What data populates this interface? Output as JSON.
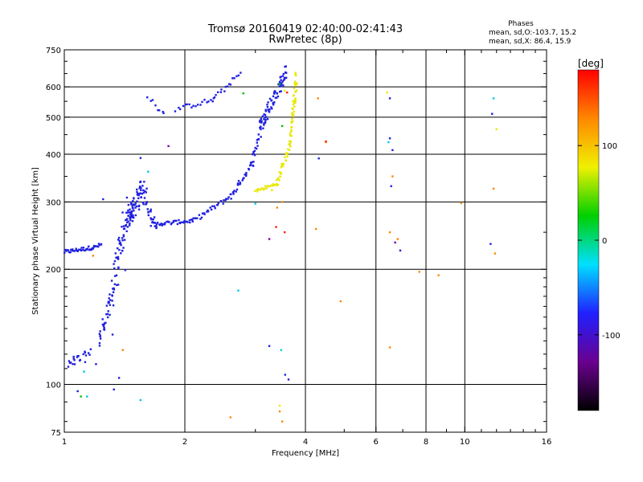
{
  "chart_data": {
    "type": "scatter",
    "title": "Tromsø 20160419 02:40:00-02:41:43",
    "subtitle": "RwPretec (8p)",
    "phases": {
      "title": "Phases",
      "line_o": "mean, sd,O:-103.7, 15.2",
      "line_x": "mean, sd,X:  86.4, 15.9"
    },
    "xlabel": "Frequency [MHz]",
    "ylabel": "Stationary phase Virtual Height [km]",
    "x_scale": "log",
    "y_scale": "log",
    "xlim": [
      1,
      16
    ],
    "ylim": [
      75,
      750
    ],
    "xticks": [
      1,
      2,
      4,
      6,
      8,
      10,
      16
    ],
    "xtick_labels": [
      "1",
      "2",
      "4",
      "6",
      "8",
      "10",
      "16"
    ],
    "x_gridlines": [
      2,
      4,
      6,
      8,
      10
    ],
    "yticks": [
      75,
      100,
      200,
      300,
      400,
      500,
      600,
      750
    ],
    "ytick_labels": [
      "75",
      "100",
      "200",
      "300",
      "400",
      "500",
      "600",
      "750"
    ],
    "y_gridlines": [
      100,
      200,
      300,
      400,
      500,
      600
    ],
    "grid": true,
    "colorbar": {
      "label": "[deg]",
      "min": -180,
      "max": 180,
      "ticks": [
        100,
        0,
        -100
      ],
      "tick_labels": [
        "100",
        "0",
        "-100"
      ],
      "colors": [
        "#000000",
        "#6a0090",
        "#2020ff",
        "#00e0ff",
        "#00d000",
        "#f0f000",
        "#ff8800",
        "#ff0000"
      ]
    },
    "series": [
      {
        "color": "#2020e0",
        "segments": [
          {
            "from": [
              1.0,
              222
            ],
            "to": [
              1.18,
              228
            ],
            "n": 34,
            "jitter": 0.012
          },
          {
            "from": [
              1.18,
              228
            ],
            "to": [
              1.24,
              232
            ],
            "n": 10,
            "jitter": 0.012
          },
          {
            "from": [
              1.02,
              112
            ],
            "to": [
              1.16,
              120
            ],
            "n": 22,
            "jitter": 0.035
          },
          {
            "from": [
              1.22,
              130
            ],
            "to": [
              1.3,
              160
            ],
            "n": 24,
            "jitter": 0.04
          },
          {
            "from": [
              1.3,
              160
            ],
            "to": [
              1.38,
              230
            ],
            "n": 36,
            "jitter": 0.06
          },
          {
            "from": [
              1.38,
              230
            ],
            "to": [
              1.46,
              290
            ],
            "n": 34,
            "jitter": 0.07
          },
          {
            "from": [
              1.44,
              270
            ],
            "to": [
              1.58,
              330
            ],
            "n": 70,
            "jitter": 0.06
          },
          {
            "from": [
              1.58,
              300
            ],
            "to": [
              1.7,
              262
            ],
            "n": 22,
            "jitter": 0.03
          },
          {
            "from": [
              1.65,
              262
            ],
            "to": [
              2.1,
              268
            ],
            "n": 40,
            "jitter": 0.012
          },
          {
            "from": [
              2.1,
              268
            ],
            "to": [
              2.6,
              310
            ],
            "n": 30,
            "jitter": 0.015
          },
          {
            "from": [
              2.6,
              310
            ],
            "to": [
              2.95,
              380
            ],
            "n": 28,
            "jitter": 0.02
          },
          {
            "from": [
              2.95,
              380
            ],
            "to": [
              3.15,
              500
            ],
            "n": 26,
            "jitter": 0.03
          },
          {
            "from": [
              3.1,
              480
            ],
            "to": [
              3.6,
              660
            ],
            "n": 70,
            "jitter": 0.04
          },
          {
            "from": [
              1.9,
              525
            ],
            "to": [
              2.35,
              555
            ],
            "n": 18,
            "jitter": 0.015
          },
          {
            "from": [
              2.35,
              555
            ],
            "to": [
              2.75,
              650
            ],
            "n": 16,
            "jitter": 0.015
          },
          {
            "from": [
              1.62,
              560
            ],
            "to": [
              1.78,
              510
            ],
            "n": 8,
            "jitter": 0.02
          }
        ],
        "points": [
          [
            1.08,
            96
          ],
          [
            1.33,
            97
          ],
          [
            1.37,
            104
          ],
          [
            1.42,
            199
          ],
          [
            1.2,
            113
          ],
          [
            1.32,
            135
          ],
          [
            1.55,
            391
          ],
          [
            1.25,
            305
          ],
          [
            3.25,
            126
          ],
          [
            6.5,
            560
          ],
          [
            6.5,
            440
          ],
          [
            6.6,
            410
          ],
          [
            6.55,
            330
          ],
          [
            11.7,
            510
          ],
          [
            11.6,
            233
          ],
          [
            6.9,
            224
          ],
          [
            4.32,
            390
          ],
          [
            3.56,
            106
          ],
          [
            3.63,
            103
          ]
        ]
      },
      {
        "color": "#e8e800",
        "segments": [
          {
            "from": [
              3.0,
              320
            ],
            "to": [
              3.4,
              335
            ],
            "n": 22,
            "jitter": 0.01
          },
          {
            "from": [
              3.4,
              335
            ],
            "to": [
              3.65,
              420
            ],
            "n": 30,
            "jitter": 0.02
          },
          {
            "from": [
              3.65,
              420
            ],
            "to": [
              3.8,
              650
            ],
            "n": 40,
            "jitter": 0.02
          },
          {
            "from": [
              3.7,
              500
            ],
            "to": [
              3.82,
              600
            ],
            "n": 8,
            "jitter": 0.02
          }
        ],
        "points": [
          [
            3.55,
            586
          ],
          [
            3.45,
            88
          ],
          [
            3.3,
            322
          ],
          [
            12.0,
            465
          ],
          [
            6.4,
            580
          ]
        ]
      },
      {
        "color": "#00c8e8",
        "points": [
          [
            1.14,
            93
          ],
          [
            1.55,
            91
          ],
          [
            1.62,
            360
          ],
          [
            2.72,
            176
          ],
          [
            3.48,
            123
          ],
          [
            6.45,
            430
          ],
          [
            11.8,
            560
          ],
          [
            3.0,
            297
          ],
          [
            1.12,
            108
          ]
        ]
      },
      {
        "color": "#00c000",
        "points": [
          [
            1.1,
            93
          ],
          [
            3.5,
            474
          ],
          [
            3.45,
            610
          ],
          [
            2.8,
            577
          ]
        ]
      },
      {
        "color": "#ff8800",
        "points": [
          [
            2.6,
            82
          ],
          [
            3.45,
            85
          ],
          [
            3.5,
            80
          ],
          [
            3.4,
            290
          ],
          [
            3.5,
            300
          ],
          [
            4.3,
            560
          ],
          [
            4.5,
            430
          ],
          [
            4.9,
            165
          ],
          [
            6.5,
            125
          ],
          [
            6.6,
            350
          ],
          [
            6.5,
            250
          ],
          [
            6.8,
            240
          ],
          [
            11.8,
            325
          ],
          [
            11.9,
            220
          ],
          [
            9.8,
            298
          ],
          [
            8.6,
            193
          ],
          [
            7.7,
            197
          ],
          [
            1.4,
            123
          ],
          [
            1.18,
            217
          ],
          [
            4.25,
            255
          ]
        ]
      },
      {
        "color": "#ff2000",
        "points": [
          [
            3.6,
            580
          ],
          [
            4.5,
            432
          ],
          [
            3.55,
            250
          ],
          [
            3.38,
            258
          ]
        ]
      },
      {
        "color": "#7a00b0",
        "points": [
          [
            1.82,
            420
          ],
          [
            6.7,
            235
          ],
          [
            3.25,
            240
          ]
        ]
      }
    ]
  }
}
